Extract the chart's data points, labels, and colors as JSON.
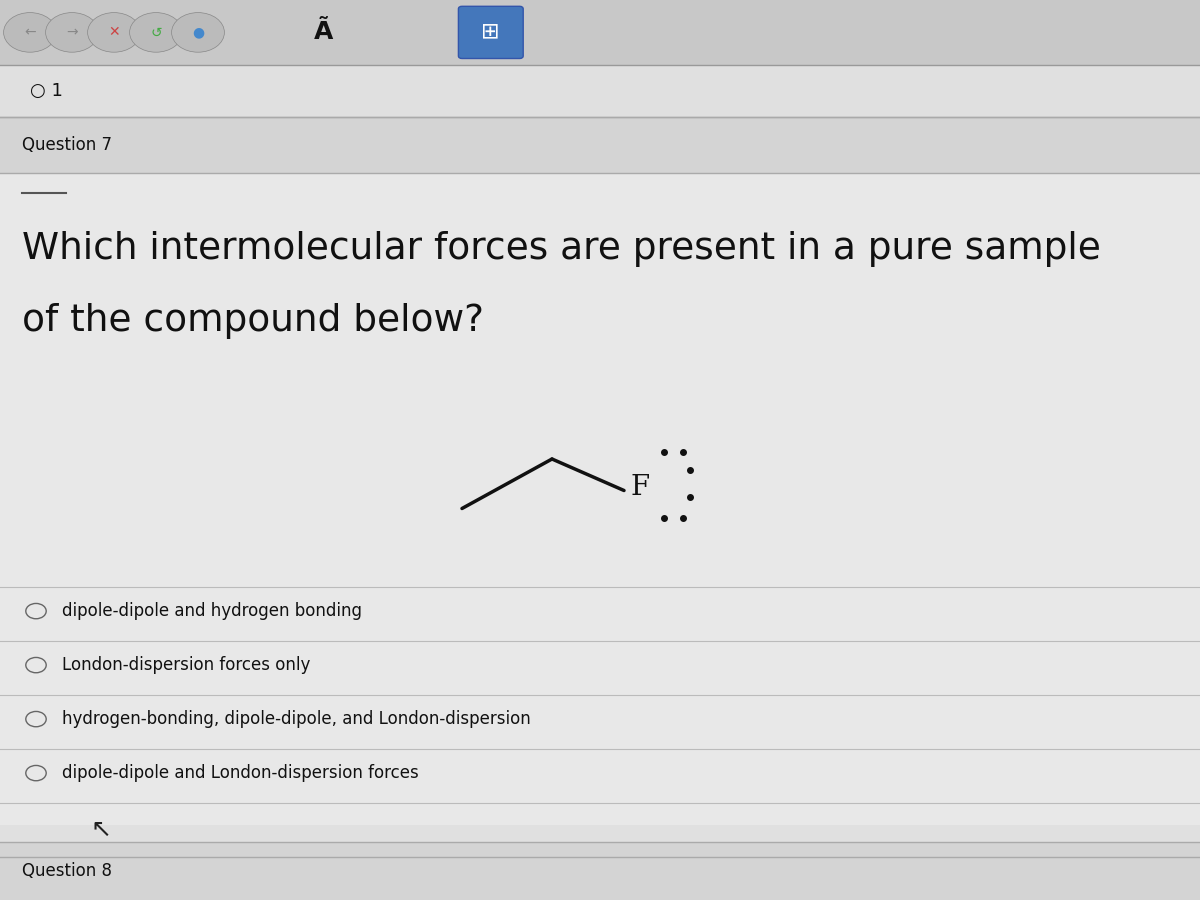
{
  "bg_color": "#e0e0e0",
  "toolbar_color": "#c8c8c8",
  "content_bg": "#e8e8e8",
  "page_num_text": "○ 1",
  "question_label": "Question 7",
  "question_text_line1": "Which intermolecular forces are present in a pure sample",
  "question_text_line2": "of the compound below?",
  "options": [
    "dipole-dipole and hydrogen bonding",
    "London-dispersion forces only",
    "hydrogen-bonding, dipole-dipole, and London-dispersion",
    "dipole-dipole and London-dispersion forces"
  ],
  "question8_label": "Question 8",
  "question_fontsize": 27,
  "option_fontsize": 12,
  "label_fontsize": 12,
  "text_color": "#111111",
  "divider_color": "#aaaaaa"
}
